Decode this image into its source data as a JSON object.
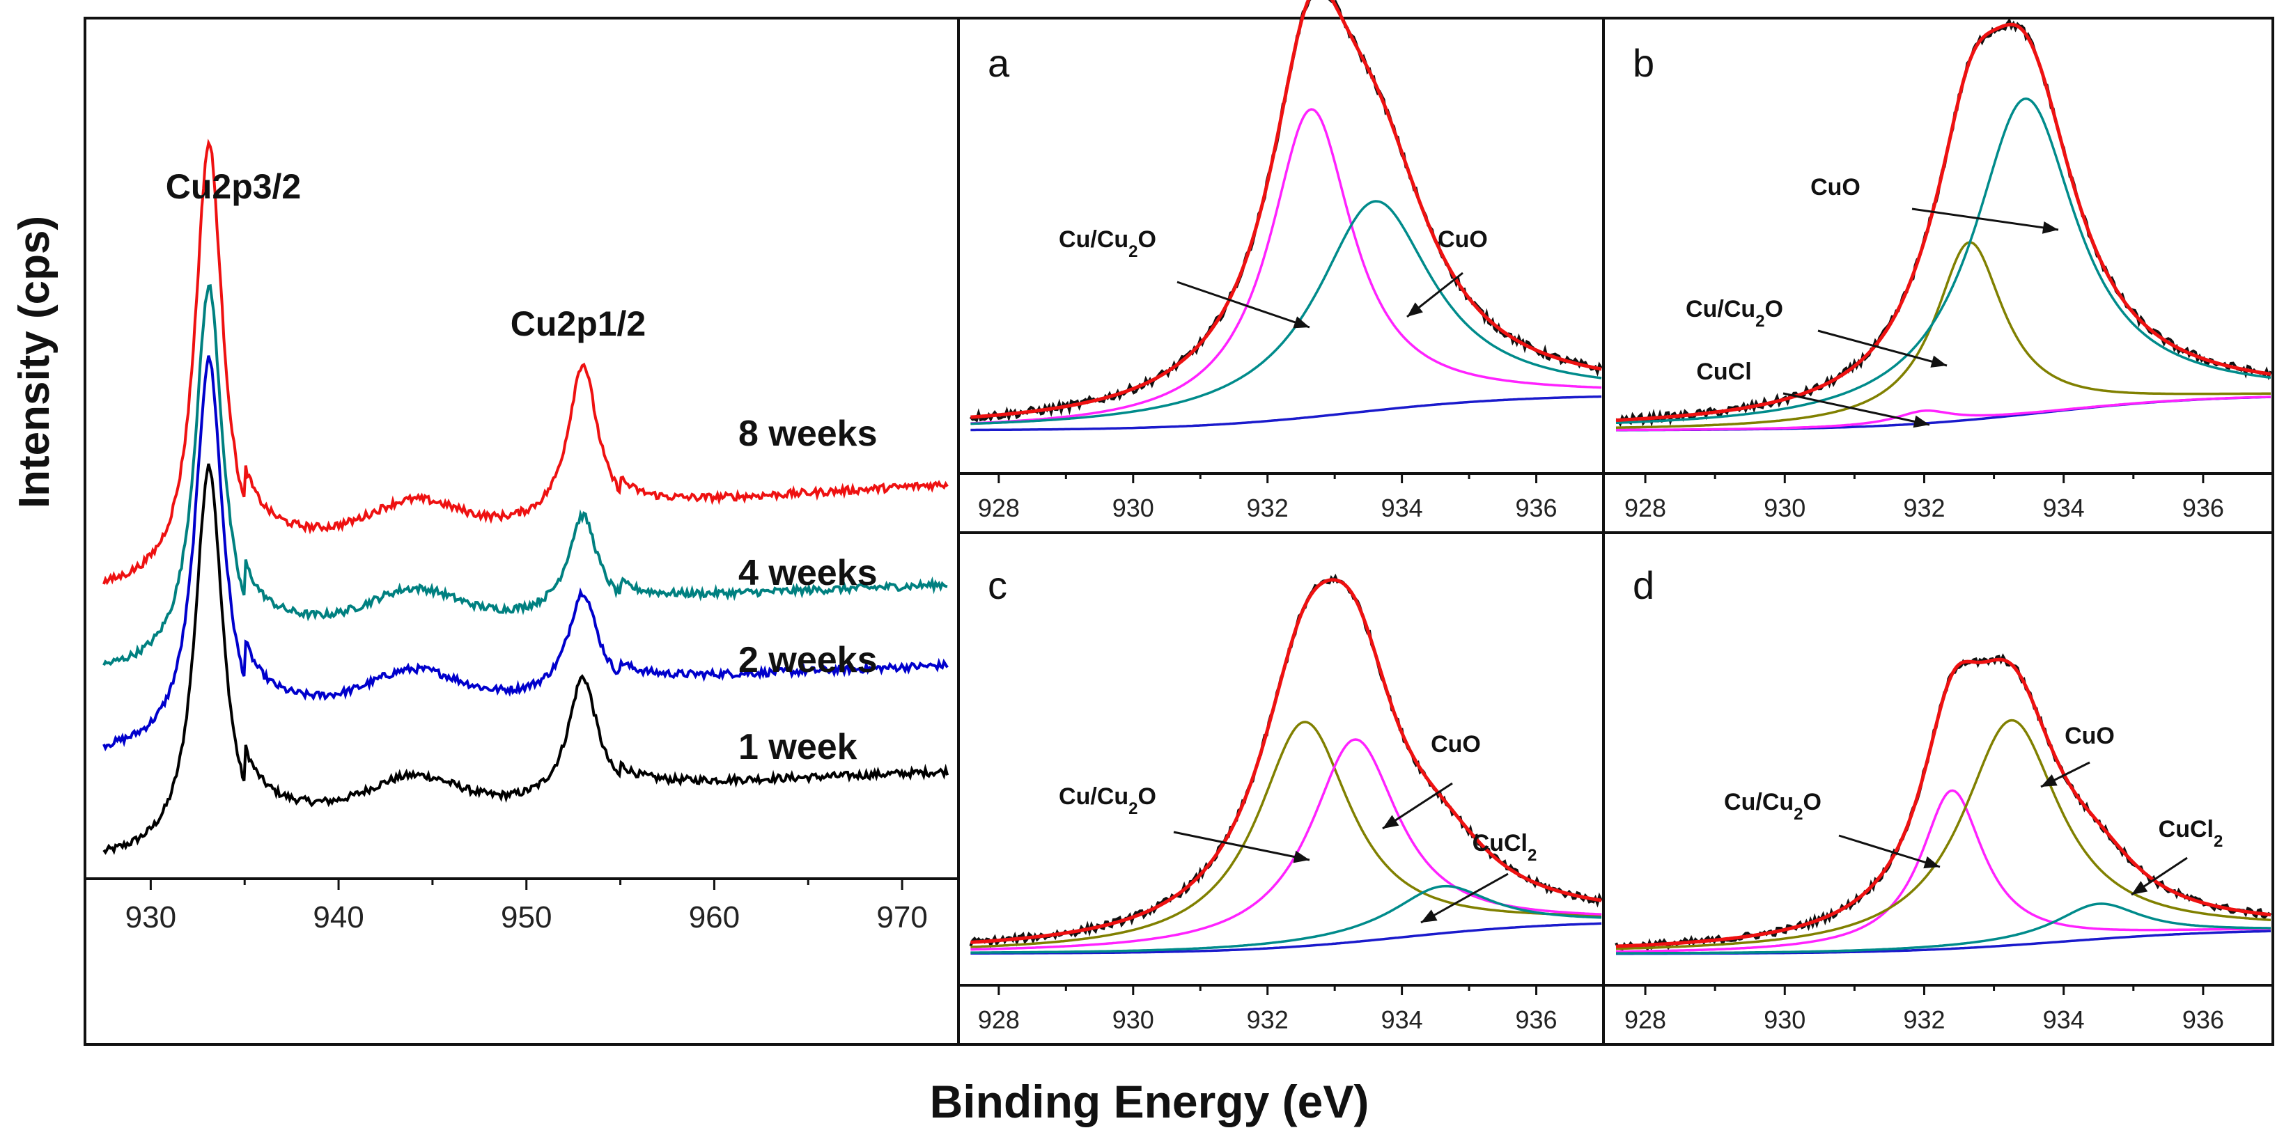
{
  "figure": {
    "y_axis_title": "Intensity (cps)",
    "x_axis_title": "Binding Energy (eV)"
  },
  "chart_data": [
    {
      "id": "main",
      "type": "line",
      "title": "",
      "xlabel": "Binding Energy (eV)",
      "ylabel": "Intensity (cps)",
      "xlim": [
        926.5,
        973
      ],
      "ylim": [
        0,
        10
      ],
      "x_ticks": [
        930,
        940,
        950,
        960,
        970
      ],
      "peak_labels": [
        "Cu2p3/2",
        "Cu2p1/2"
      ],
      "peaks": [
        {
          "label": "Cu2p3/2",
          "x": 933.1
        },
        {
          "label": "Cu2p1/2",
          "x": 953.0
        }
      ],
      "series": [
        {
          "name": "1 week",
          "color": "#000000",
          "offset": 0.2,
          "amp32": 4.6,
          "amp12": 1.45,
          "slope": 0.01,
          "base_x0": 927.5,
          "base_x1": 972.5
        },
        {
          "name": "2 weeks",
          "color": "#0000cc",
          "offset": 1.45,
          "amp32": 4.6,
          "amp12": 1.2,
          "slope": 0.01,
          "base_x0": 927.5,
          "base_x1": 972.5
        },
        {
          "name": "4 weeks",
          "color": "#008080",
          "offset": 2.4,
          "amp32": 4.5,
          "amp12": 1.15,
          "slope": 0.01,
          "base_x0": 927.5,
          "base_x1": 972.5
        },
        {
          "name": "8 weeks",
          "color": "#ee1111",
          "offset": 3.35,
          "amp32": 5.2,
          "amp12": 1.85,
          "slope": 0.015,
          "base_x0": 927.5,
          "base_x1": 972.5
        }
      ]
    },
    {
      "id": "a",
      "type": "line",
      "panel_label": "a",
      "xlim": [
        927.4,
        937
      ],
      "ylim": [
        0,
        1.05
      ],
      "x_ticks": [
        928,
        930,
        932,
        934,
        936
      ],
      "baseline": [
        0.03,
        0.12,
        933.3,
        1.25
      ],
      "components": [
        {
          "name": "Cu/Cu2O",
          "color": "#ff22ff",
          "center": 932.65,
          "height": 0.78,
          "width": 0.75
        },
        {
          "name": "CuO",
          "color": "#008b8b",
          "center": 933.6,
          "height": 0.53,
          "width": 1.05
        }
      ],
      "annotations": [
        {
          "text": "Cu/Cu",
          "sub": "2",
          "after": "O",
          "target": "Cu/Cu2O"
        },
        {
          "text": "CuO",
          "sub": "",
          "after": "",
          "target": "CuO"
        }
      ]
    },
    {
      "id": "b",
      "type": "line",
      "panel_label": "b",
      "xlim": [
        927.4,
        937
      ],
      "ylim": [
        0,
        1.05
      ],
      "x_ticks": [
        928,
        930,
        932,
        934,
        936
      ],
      "baseline": [
        0.03,
        0.12,
        933.7,
        1.2
      ],
      "components": [
        {
          "name": "CuCl",
          "color": "#ff22ff",
          "center": 932.0,
          "height": 0.032,
          "width": 0.5
        },
        {
          "name": "Cu/Cu2O",
          "color": "#808000",
          "center": 932.65,
          "height": 0.45,
          "width": 0.6
        },
        {
          "name": "CuO",
          "color": "#008b8b",
          "center": 933.45,
          "height": 0.8,
          "width": 0.9
        }
      ],
      "annotations": [
        {
          "text": "CuO",
          "sub": "",
          "after": "",
          "target": "CuO"
        },
        {
          "text": "Cu/Cu",
          "sub": "2",
          "after": "O",
          "target": "Cu/Cu2O"
        },
        {
          "text": "CuCl",
          "sub": "",
          "after": "",
          "target": "CuCl"
        }
      ]
    },
    {
      "id": "c",
      "type": "line",
      "panel_label": "c",
      "xlim": [
        927.4,
        937
      ],
      "ylim": [
        0,
        1.05
      ],
      "x_ticks": [
        928,
        930,
        932,
        934,
        936
      ],
      "baseline": [
        0.03,
        0.12,
        934.0,
        1.2
      ],
      "components": [
        {
          "name": "Cu/Cu2O",
          "color": "#808000",
          "center": 932.55,
          "height": 0.62,
          "width": 0.85
        },
        {
          "name": "CuO",
          "color": "#ff22ff",
          "center": 933.3,
          "height": 0.56,
          "width": 0.8
        },
        {
          "name": "CuCl2",
          "color": "#008b8b",
          "center": 934.6,
          "height": 0.13,
          "width": 0.9
        }
      ],
      "annotations": [
        {
          "text": "Cu/Cu",
          "sub": "2",
          "after": "O",
          "target": "Cu/Cu2O"
        },
        {
          "text": "CuO",
          "sub": "",
          "after": "",
          "target": "CuO"
        },
        {
          "text": "CuCl",
          "sub": "2",
          "after": "",
          "target": "CuCl2"
        }
      ]
    },
    {
      "id": "d",
      "type": "line",
      "panel_label": "d",
      "xlim": [
        927.4,
        937
      ],
      "ylim": [
        0,
        1.05
      ],
      "x_ticks": [
        928,
        930,
        932,
        934,
        936
      ],
      "baseline": [
        0.03,
        0.1,
        934.0,
        1.2
      ],
      "components": [
        {
          "name": "Cu/Cu2O",
          "color": "#ff22ff",
          "center": 932.4,
          "height": 0.45,
          "width": 0.55
        },
        {
          "name": "CuO",
          "color": "#808000",
          "center": 933.25,
          "height": 0.64,
          "width": 0.85
        },
        {
          "name": "CuCl2",
          "color": "#008b8b",
          "center": 934.5,
          "height": 0.1,
          "width": 0.75
        }
      ],
      "annotations": [
        {
          "text": "Cu/Cu",
          "sub": "2",
          "after": "O",
          "target": "Cu/Cu2O"
        },
        {
          "text": "CuO",
          "sub": "",
          "after": "",
          "target": "CuO"
        },
        {
          "text": "CuCl",
          "sub": "2",
          "after": "",
          "target": "CuCl2"
        }
      ]
    }
  ],
  "colors": {
    "raw_data": "#111111",
    "envelope": "#ee1111",
    "background": "#1a1acc"
  }
}
